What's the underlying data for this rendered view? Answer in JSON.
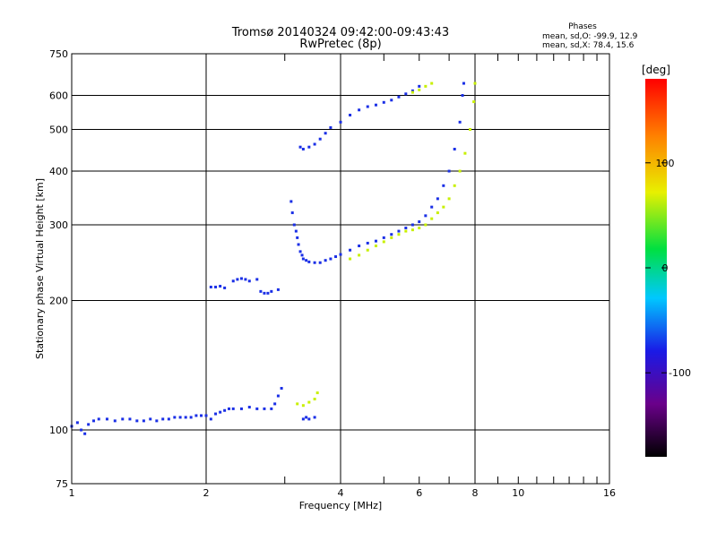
{
  "title_line1": "Tromsø 20140324 09:42:00-09:43:43",
  "title_line2": "RwPretec (8p)",
  "phase_box": {
    "heading": "Phases",
    "line_o": "mean, sd,O: -99.9, 12.9",
    "line_x": "mean, sd,X:  78.4, 15.6"
  },
  "colorbar": {
    "unit_label": "[deg]",
    "min": -180,
    "max": 180,
    "ticks": [
      {
        "value": 100,
        "label": "100"
      },
      {
        "value": 0,
        "label": "0"
      },
      {
        "value": -100,
        "label": "-100"
      }
    ]
  },
  "colors": {
    "o_mode": "#1a2fe6",
    "x_mode": "#c8f000",
    "grid": "#000000"
  },
  "chart_data": {
    "type": "scatter",
    "xlabel": "Frequency [MHz]",
    "ylabel": "Stationary phase Virtual Height [km]",
    "xscale": "log2",
    "yscale": "log",
    "xlim": [
      1,
      16
    ],
    "ylim": [
      75,
      750
    ],
    "x_ticks": [
      {
        "value": 1,
        "label": "1"
      },
      {
        "value": 2,
        "label": "2"
      },
      {
        "value": 4,
        "label": "4"
      },
      {
        "value": 6,
        "label": "6"
      },
      {
        "value": 8,
        "label": "8"
      },
      {
        "value": 10,
        "label": "10"
      },
      {
        "value": 16,
        "label": "16"
      }
    ],
    "y_ticks": [
      {
        "value": 75,
        "label": "75"
      },
      {
        "value": 100,
        "label": "100"
      },
      {
        "value": 200,
        "label": "200"
      },
      {
        "value": 300,
        "label": "300"
      },
      {
        "value": 400,
        "label": "400"
      },
      {
        "value": 500,
        "label": "500"
      },
      {
        "value": 600,
        "label": "600"
      },
      {
        "value": 750,
        "label": "750"
      }
    ],
    "x_major_grid": [
      2,
      4,
      8
    ],
    "x_minor_ticks": [
      3,
      5,
      6,
      7,
      9,
      10,
      11,
      12,
      13,
      14,
      15
    ],
    "y_major_grid": [
      100,
      200,
      300,
      400,
      500,
      600
    ],
    "series": [
      {
        "mode": "O",
        "phase": -100,
        "points": [
          [
            1.0,
            102
          ],
          [
            1.03,
            104
          ],
          [
            1.05,
            100
          ],
          [
            1.07,
            98
          ],
          [
            1.09,
            103
          ],
          [
            1.12,
            105
          ],
          [
            1.15,
            106
          ],
          [
            1.2,
            106
          ],
          [
            1.25,
            105
          ],
          [
            1.3,
            106
          ],
          [
            1.35,
            106
          ],
          [
            1.4,
            105
          ],
          [
            1.45,
            105
          ],
          [
            1.5,
            106
          ],
          [
            1.55,
            105
          ],
          [
            1.6,
            106
          ],
          [
            1.65,
            106
          ],
          [
            1.7,
            107
          ],
          [
            1.75,
            107
          ],
          [
            1.8,
            107
          ],
          [
            1.85,
            107
          ],
          [
            1.9,
            108
          ],
          [
            1.95,
            108
          ],
          [
            2.0,
            108
          ],
          [
            2.05,
            106
          ],
          [
            2.1,
            109
          ],
          [
            2.15,
            110
          ],
          [
            2.2,
            111
          ],
          [
            2.25,
            112
          ],
          [
            2.3,
            112
          ],
          [
            2.4,
            112
          ],
          [
            2.5,
            113
          ],
          [
            2.6,
            112
          ],
          [
            2.7,
            112
          ],
          [
            2.8,
            112
          ],
          [
            2.85,
            115
          ],
          [
            2.9,
            120
          ],
          [
            2.95,
            125
          ],
          [
            3.3,
            106
          ],
          [
            3.35,
            107
          ],
          [
            3.4,
            106
          ],
          [
            3.5,
            107
          ],
          [
            2.05,
            215
          ],
          [
            2.1,
            215
          ],
          [
            2.15,
            216
          ],
          [
            2.2,
            214
          ],
          [
            2.3,
            222
          ],
          [
            2.35,
            224
          ],
          [
            2.4,
            225
          ],
          [
            2.45,
            224
          ],
          [
            2.5,
            222
          ],
          [
            2.6,
            224
          ],
          [
            2.65,
            210
          ],
          [
            2.7,
            208
          ],
          [
            2.75,
            208
          ],
          [
            2.8,
            210
          ],
          [
            2.9,
            212
          ],
          [
            3.1,
            340
          ],
          [
            3.12,
            320
          ],
          [
            3.15,
            300
          ],
          [
            3.18,
            290
          ],
          [
            3.2,
            280
          ],
          [
            3.22,
            270
          ],
          [
            3.25,
            260
          ],
          [
            3.28,
            255
          ],
          [
            3.3,
            250
          ],
          [
            3.35,
            248
          ],
          [
            3.4,
            246
          ],
          [
            3.5,
            245
          ],
          [
            3.6,
            245
          ],
          [
            3.7,
            248
          ],
          [
            3.8,
            250
          ],
          [
            3.9,
            253
          ],
          [
            4.0,
            256
          ],
          [
            4.2,
            262
          ],
          [
            4.4,
            268
          ],
          [
            4.6,
            272
          ],
          [
            4.8,
            275
          ],
          [
            5.0,
            280
          ],
          [
            5.2,
            285
          ],
          [
            5.4,
            290
          ],
          [
            5.6,
            295
          ],
          [
            5.8,
            300
          ],
          [
            6.0,
            305
          ],
          [
            6.2,
            315
          ],
          [
            6.4,
            330
          ],
          [
            6.6,
            345
          ],
          [
            6.8,
            370
          ],
          [
            7.0,
            400
          ],
          [
            7.2,
            450
          ],
          [
            7.4,
            520
          ],
          [
            7.5,
            600
          ],
          [
            7.55,
            640
          ],
          [
            3.25,
            455
          ],
          [
            3.3,
            450
          ],
          [
            3.4,
            455
          ],
          [
            3.5,
            462
          ],
          [
            3.6,
            475
          ],
          [
            3.7,
            490
          ],
          [
            3.8,
            505
          ],
          [
            4.0,
            520
          ],
          [
            4.2,
            540
          ],
          [
            4.4,
            555
          ],
          [
            4.6,
            565
          ],
          [
            4.8,
            570
          ],
          [
            5.0,
            578
          ],
          [
            5.2,
            585
          ],
          [
            5.4,
            595
          ],
          [
            5.6,
            605
          ],
          [
            5.8,
            615
          ],
          [
            6.0,
            630
          ]
        ]
      },
      {
        "mode": "X",
        "phase": 80,
        "points": [
          [
            3.2,
            115
          ],
          [
            3.3,
            114
          ],
          [
            3.4,
            116
          ],
          [
            3.5,
            118
          ],
          [
            3.55,
            122
          ],
          [
            4.2,
            250
          ],
          [
            4.4,
            255
          ],
          [
            4.6,
            262
          ],
          [
            4.8,
            268
          ],
          [
            5.0,
            274
          ],
          [
            5.2,
            280
          ],
          [
            5.4,
            285
          ],
          [
            5.6,
            290
          ],
          [
            5.8,
            292
          ],
          [
            6.0,
            295
          ],
          [
            6.2,
            300
          ],
          [
            6.4,
            310
          ],
          [
            6.6,
            320
          ],
          [
            6.8,
            330
          ],
          [
            7.0,
            345
          ],
          [
            7.2,
            370
          ],
          [
            7.4,
            400
          ],
          [
            7.6,
            440
          ],
          [
            7.8,
            500
          ],
          [
            7.95,
            580
          ],
          [
            8.0,
            640
          ],
          [
            5.8,
            610
          ],
          [
            6.0,
            618
          ],
          [
            6.2,
            630
          ],
          [
            6.4,
            640
          ]
        ]
      }
    ]
  }
}
